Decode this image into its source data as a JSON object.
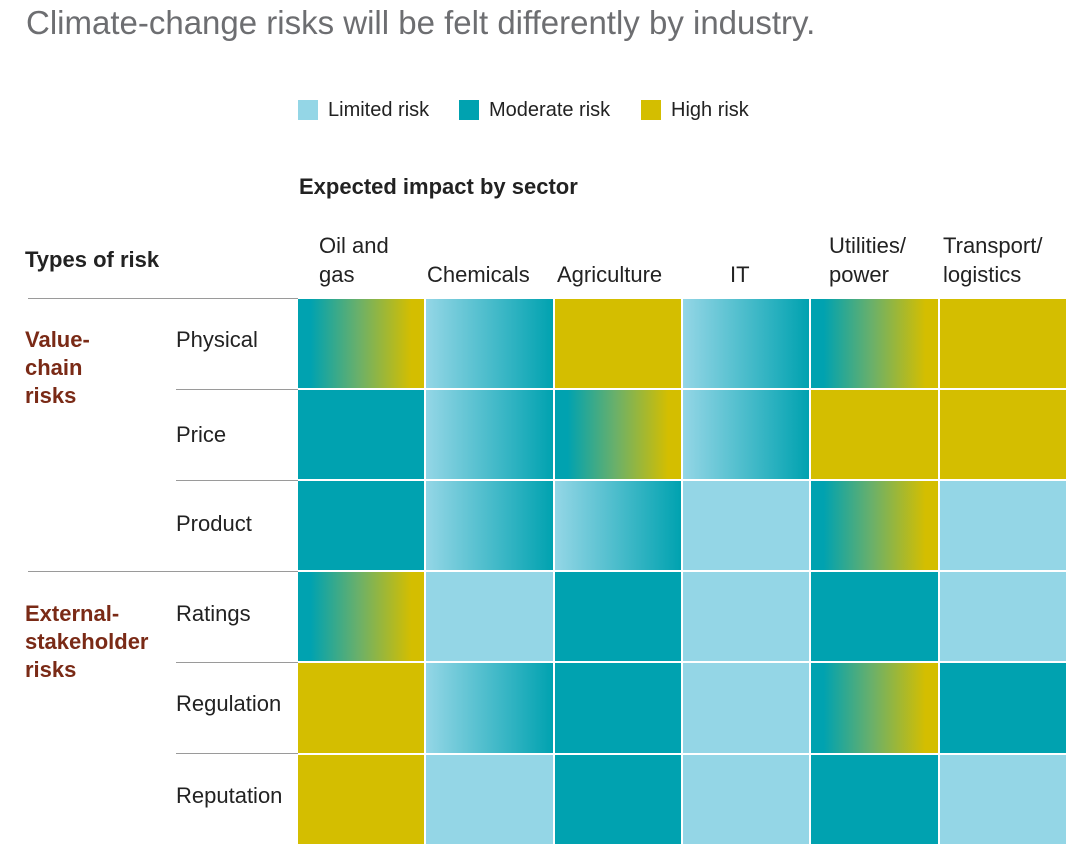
{
  "title": "Climate-change risks will be felt differently by industry.",
  "legend": [
    {
      "label": "Limited risk",
      "color": "#94d6e6"
    },
    {
      "label": "Moderate risk",
      "color": "#00a2b0"
    },
    {
      "label": "High risk",
      "color": "#d4be00"
    }
  ],
  "chart_data": {
    "type": "heatmap",
    "x_header": "Expected impact by sector",
    "y_header": "Types of risk",
    "columns": [
      "Oil and\ngas",
      "Chemicals",
      "Agriculture",
      "IT",
      "Utilities/\npower",
      "Transport/\nlogistics"
    ],
    "groups": [
      {
        "label": "Value-\nchain\nrisks",
        "rows": [
          "Physical",
          "Price",
          "Product"
        ]
      },
      {
        "label": "External-\nstakeholder\nrisks",
        "rows": [
          "Ratings",
          "Regulation",
          "Reputation"
        ]
      }
    ],
    "rows": [
      "Physical",
      "Price",
      "Product",
      "Ratings",
      "Regulation",
      "Reputation"
    ],
    "cells": [
      [
        "moderate-high",
        "limited-moderate",
        "high",
        "limited-moderate",
        "moderate-high",
        "high"
      ],
      [
        "moderate",
        "limited-moderate",
        "moderate-high",
        "limited-moderate",
        "high",
        "high"
      ],
      [
        "moderate",
        "limited-moderate",
        "limited-moderate",
        "limited",
        "moderate-high",
        "limited"
      ],
      [
        "moderate-high",
        "limited",
        "moderate",
        "limited",
        "moderate",
        "limited"
      ],
      [
        "high",
        "limited-moderate",
        "moderate",
        "limited",
        "moderate-high",
        "moderate"
      ],
      [
        "high",
        "limited",
        "moderate",
        "limited",
        "moderate",
        "limited"
      ]
    ]
  }
}
